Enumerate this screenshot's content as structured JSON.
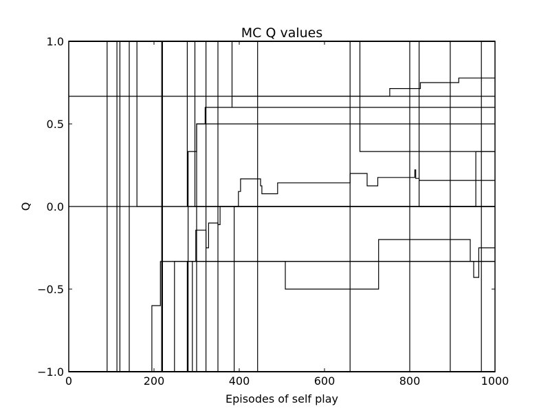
{
  "chart_data": {
    "type": "line",
    "title": "MC Q values",
    "xlabel": "Episodes of self play",
    "ylabel": "Q",
    "xlim": [
      0,
      1000
    ],
    "ylim": [
      -1.0,
      1.0
    ],
    "xticks": [
      0,
      200,
      400,
      600,
      800,
      1000
    ],
    "xtick_labels": [
      "0",
      "200",
      "400",
      "600",
      "800",
      "1000"
    ],
    "yticks": [
      1.0,
      0.5,
      0.0,
      -0.5,
      -1.0
    ],
    "ytick_labels": [
      "1.0",
      "0.5",
      "0.0",
      "−0.5",
      "−1.0"
    ],
    "grid": false,
    "legend": "none",
    "line_color": "#000000",
    "series": [
      {
        "x": [
          0,
          90,
          90,
          1000
        ],
        "y": [
          1,
          1,
          -1,
          -1
        ]
      },
      {
        "x": [
          0,
          113,
          113,
          1000
        ],
        "y": [
          -1,
          -1,
          1,
          1
        ]
      },
      {
        "x": [
          0,
          120,
          120,
          1000
        ],
        "y": [
          1,
          1,
          -1,
          -1
        ]
      },
      {
        "x": [
          0,
          142,
          142,
          1000
        ],
        "y": [
          -1,
          -1,
          1,
          1
        ]
      },
      {
        "x": [
          0,
          160,
          160,
          1000
        ],
        "y": [
          1,
          1,
          0,
          0
        ]
      },
      {
        "x": [
          0,
          195,
          195,
          215,
          215,
          1000
        ],
        "y": [
          -1,
          -1,
          -0.6,
          -0.6,
          -0.333,
          -0.333
        ]
      },
      {
        "x": [
          0,
          218,
          218,
          1000
        ],
        "y": [
          -1,
          -1,
          1,
          1
        ]
      },
      {
        "x": [
          0,
          220,
          220,
          1000
        ],
        "y": [
          1,
          1,
          -1,
          -1
        ]
      },
      {
        "x": [
          0,
          248,
          248,
          1000
        ],
        "y": [
          -1,
          -1,
          -0.333,
          -0.333
        ]
      },
      {
        "x": [
          0,
          278,
          278,
          1000
        ],
        "y": [
          1,
          1,
          0,
          0
        ]
      },
      {
        "x": [
          0,
          280,
          280,
          300,
          300,
          1000
        ],
        "y": [
          -1,
          -1,
          0.333,
          0.333,
          0.5,
          0.5
        ]
      },
      {
        "x": [
          0,
          296,
          296,
          1000
        ],
        "y": [
          1,
          1,
          0,
          0
        ]
      },
      {
        "x": [
          0,
          300,
          300,
          320,
          320,
          1000
        ],
        "y": [
          -1,
          -1,
          0.5,
          0.5,
          0.6,
          0.6
        ]
      },
      {
        "x": [
          0,
          278,
          278,
          290,
          290,
          1000
        ],
        "y": [
          -1,
          -1,
          -0.333,
          -0.333,
          -0.333,
          -0.333
        ]
      },
      {
        "x": [
          0,
          290,
          290,
          298,
          298,
          322,
          322,
          328,
          328,
          350,
          350,
          355,
          355,
          1000
        ],
        "y": [
          -1,
          -1,
          -0.333,
          -0.333,
          -0.143,
          -0.143,
          -0.25,
          -0.25,
          -0.1,
          -0.1,
          -0.11,
          -0.11,
          0,
          0
        ]
      },
      {
        "x": [
          0,
          322,
          322,
          1000
        ],
        "y": [
          1,
          1,
          -1,
          -1
        ]
      },
      {
        "x": [
          0,
          350,
          350,
          1000
        ],
        "y": [
          -1,
          -1,
          1,
          1
        ]
      },
      {
        "x": [
          0,
          383,
          383,
          383,
          383,
          1000
        ],
        "y": [
          1,
          1,
          0.6,
          0.6,
          0.667,
          0.667
        ]
      },
      {
        "x": [
          0,
          388,
          388,
          398,
          398,
          403,
          403,
          450,
          450,
          453,
          453,
          488,
          488,
          490,
          490,
          660,
          660,
          700,
          700,
          725,
          725,
          812,
          812,
          814,
          814,
          822,
          822,
          1000
        ],
        "y": [
          -1,
          -1,
          0,
          0,
          0.091,
          0.091,
          0.167,
          0.167,
          0.125,
          0.125,
          0.077,
          0.077,
          0.077,
          0.077,
          0.143,
          0.143,
          0.2,
          0.2,
          0.125,
          0.125,
          0.176,
          0.176,
          0.222,
          0.222,
          0.17,
          0.17,
          0.158,
          0.158
        ]
      },
      {
        "x": [
          0,
          443,
          443,
          1000
        ],
        "y": [
          1,
          1,
          -1,
          -1
        ]
      },
      {
        "x": [
          0,
          218,
          218,
          508,
          508,
          727,
          727,
          942,
          942,
          950,
          950,
          962,
          962,
          968,
          968,
          1000
        ],
        "y": [
          -1,
          -1,
          -0.333,
          -0.333,
          -0.5,
          -0.5,
          -0.2,
          -0.2,
          -0.333,
          -0.333,
          -0.429,
          -0.429,
          -0.25,
          -0.25,
          -0.25,
          -0.25
        ]
      },
      {
        "x": [
          0,
          660,
          660,
          1000
        ],
        "y": [
          -1,
          -1,
          1,
          1
        ]
      },
      {
        "x": [
          0,
          683,
          683,
          1000
        ],
        "y": [
          1,
          1,
          0.333,
          0.333
        ]
      },
      {
        "x": [
          0,
          383,
          383,
          753,
          753,
          825,
          825,
          915,
          915,
          1000
        ],
        "y": [
          0.667,
          0.667,
          0.667,
          0.667,
          0.714,
          0.714,
          0.75,
          0.75,
          0.778,
          0.778
        ]
      },
      {
        "x": [
          0,
          800,
          800,
          1000
        ],
        "y": [
          1,
          1,
          -1,
          -1
        ]
      },
      {
        "x": [
          0,
          822,
          822,
          1000
        ],
        "y": [
          1,
          1,
          0,
          0
        ]
      },
      {
        "x": [
          0,
          895,
          895,
          1000
        ],
        "y": [
          1,
          1,
          -1,
          -1
        ]
      },
      {
        "x": [
          0,
          955,
          955,
          1000
        ],
        "y": [
          0,
          0,
          0.333,
          0.333
        ]
      },
      {
        "x": [
          0,
          968,
          968,
          1000
        ],
        "y": [
          -1,
          -1,
          1,
          1
        ]
      }
    ]
  }
}
